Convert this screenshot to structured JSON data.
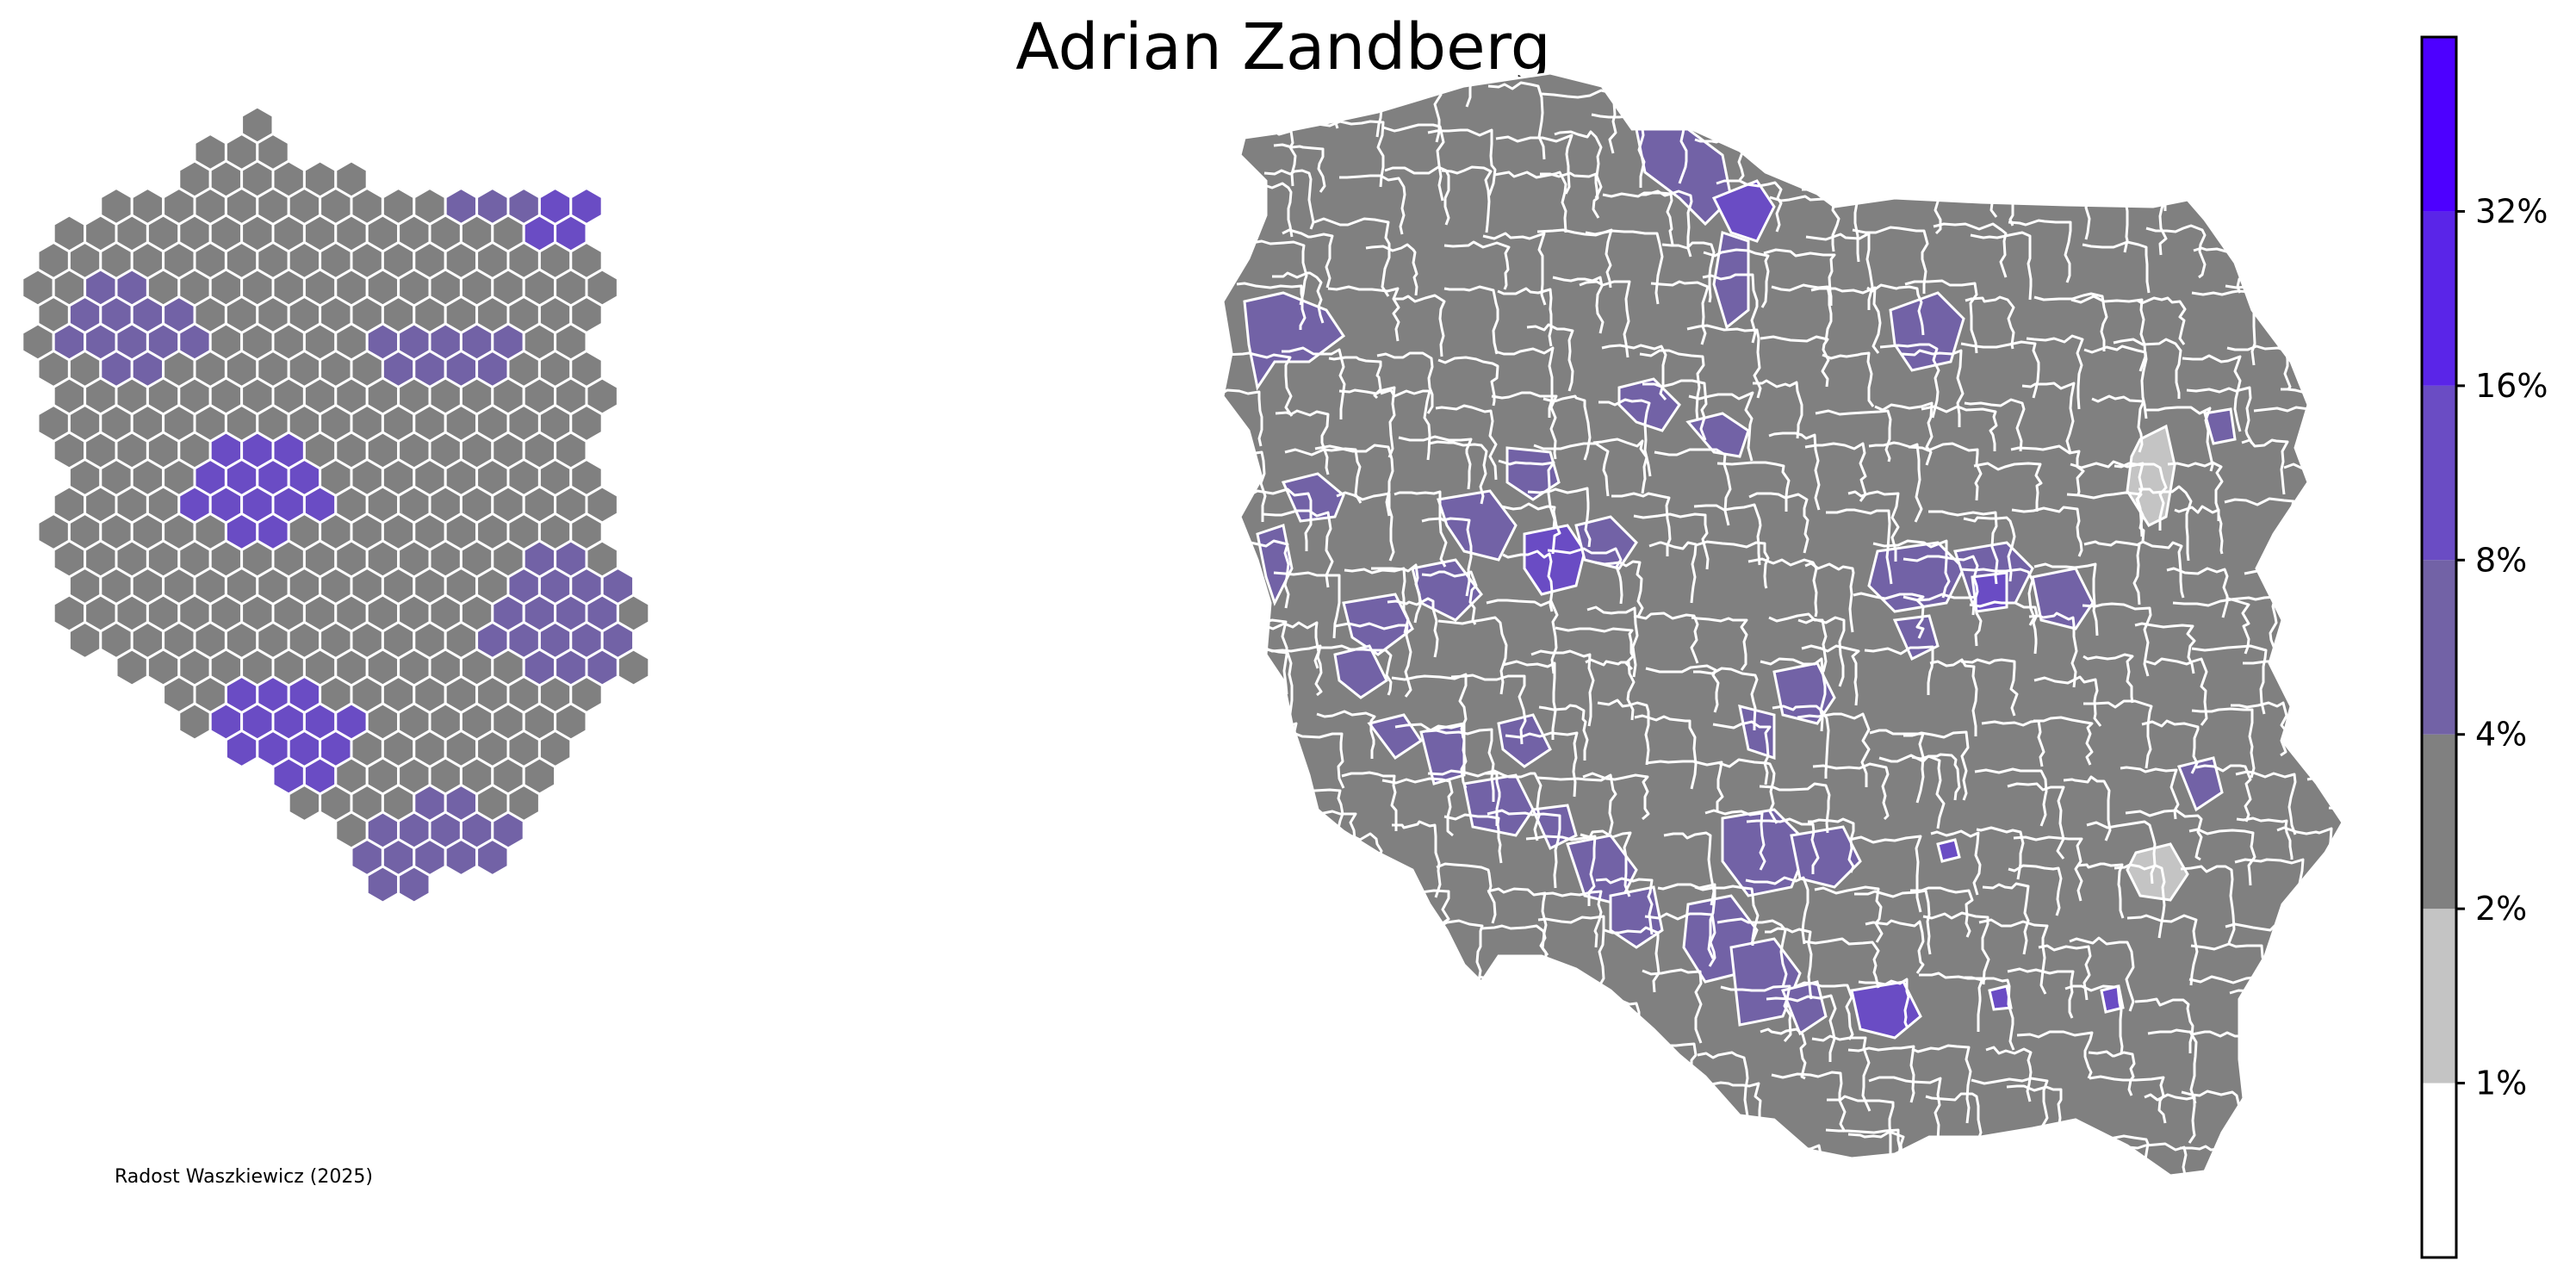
{
  "title": "Adrian Zandberg",
  "credit": "Radost Waszkiewicz (2025)",
  "colors": {
    "background": "#ffffff",
    "boundary": "#ffffff",
    "no_data": "#c4c4c4"
  },
  "legend": {
    "type": "colorbar",
    "placement": "right",
    "bins": [
      {
        "from": 0,
        "to": 1,
        "color": "#ffffff"
      },
      {
        "from": 1,
        "to": 2,
        "color": "#c4c4c4"
      },
      {
        "from": 2,
        "to": 4,
        "color": "#808080"
      },
      {
        "from": 4,
        "to": 8,
        "color": "#7262a6"
      },
      {
        "from": 8,
        "to": 16,
        "color": "#6a4cc4"
      },
      {
        "from": 16,
        "to": 32,
        "color": "#5a25e8"
      },
      {
        "from": 32,
        "to": null,
        "color": "#4d00ff"
      }
    ],
    "tick_labels": [
      "1%",
      "2%",
      "4%",
      "8%",
      "16%",
      "32%"
    ]
  },
  "maps": [
    {
      "kind": "hexagon cartogram",
      "cell_values_shown_by_fill": true
    },
    {
      "kind": "county choropleth",
      "region_values_shown_by_fill": true
    }
  ]
}
